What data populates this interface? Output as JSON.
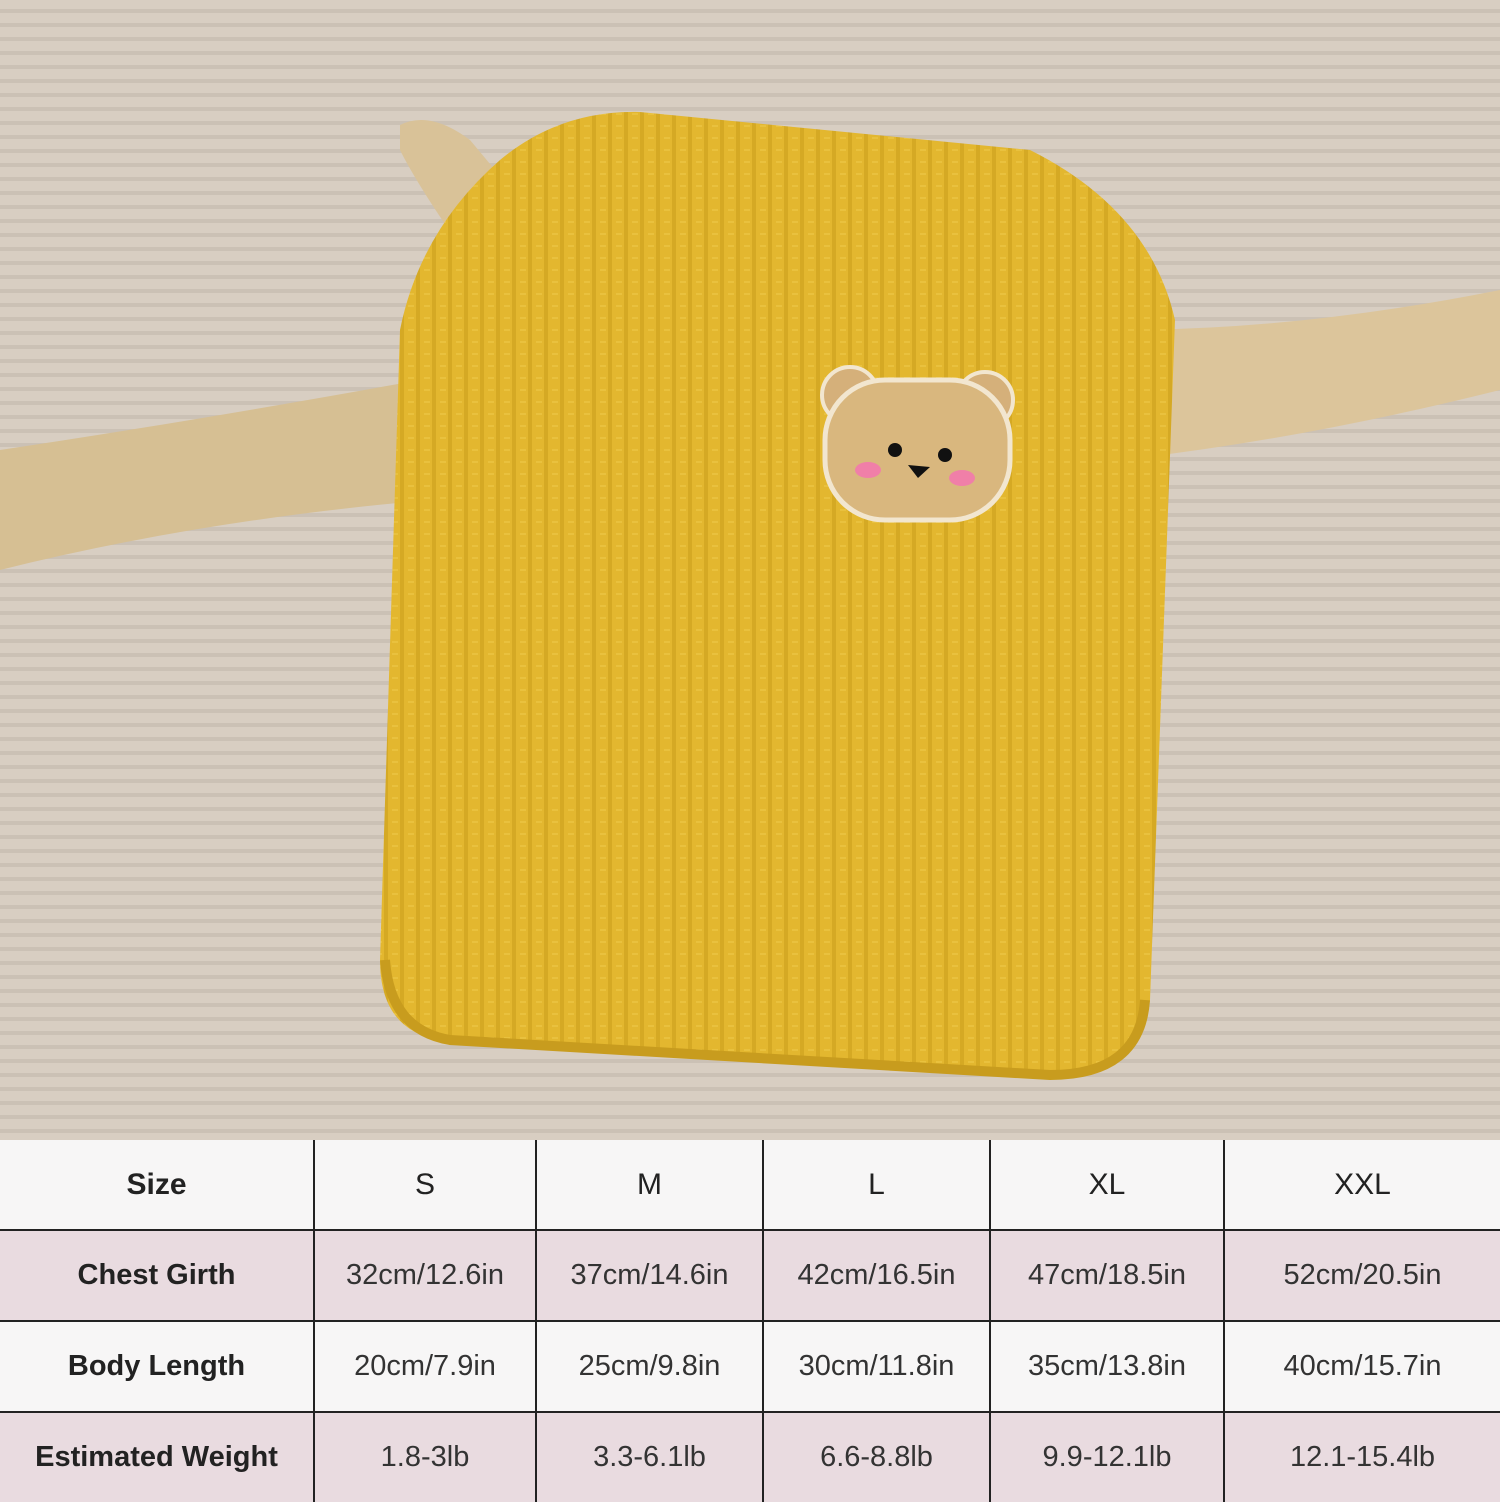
{
  "photo": {
    "subject": "yellow waffle-knit pet vest with bear face patch on branch",
    "colors": {
      "background": "#d6ccc0",
      "vest": "#e3b72f",
      "branch": "#d9c298",
      "patch": "#d9b77e"
    }
  },
  "size_table": {
    "colors": {
      "header_row": "#f7f6f6",
      "shaded_row": "#e9dbe0",
      "border": "#222222"
    },
    "header": [
      "Size",
      "S",
      "M",
      "L",
      "XL",
      "XXL"
    ],
    "rows": [
      {
        "label": "Chest Girth",
        "values": [
          "32cm/12.6in",
          "37cm/14.6in",
          "42cm/16.5in",
          "47cm/18.5in",
          "52cm/20.5in"
        ]
      },
      {
        "label": "Body Length",
        "values": [
          "20cm/7.9in",
          "25cm/9.8in",
          "30cm/11.8in",
          "35cm/13.8in",
          "40cm/15.7in"
        ]
      },
      {
        "label": "Estimated Weight",
        "values": [
          "1.8-3lb",
          "3.3-6.1lb",
          "6.6-8.8lb",
          "9.9-12.1lb",
          "12.1-15.4lb"
        ]
      }
    ]
  }
}
